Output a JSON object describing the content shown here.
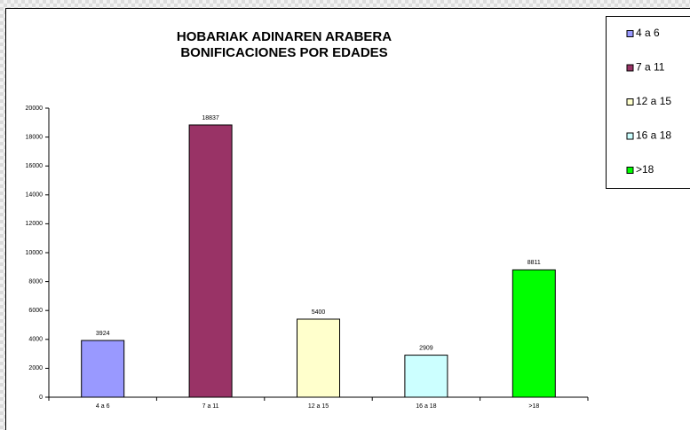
{
  "chart_data": {
    "type": "bar",
    "title": "HOBARIAK ADINAREN ARABERA",
    "subtitle": "BONIFICACIONES POR EDADES",
    "categories": [
      "4 a 6",
      "7 a 11",
      "12 a 15",
      "16 a 18",
      ">18"
    ],
    "values": [
      3924,
      18837,
      5400,
      2909,
      8811
    ],
    "colors": [
      "#9999ff",
      "#993366",
      "#ffffcc",
      "#ccffff",
      "#00ff00"
    ],
    "ylim": [
      0,
      20000
    ],
    "yticks": [
      0,
      2000,
      4000,
      6000,
      8000,
      10000,
      12000,
      14000,
      16000,
      18000,
      20000
    ],
    "legend": "top-right"
  }
}
